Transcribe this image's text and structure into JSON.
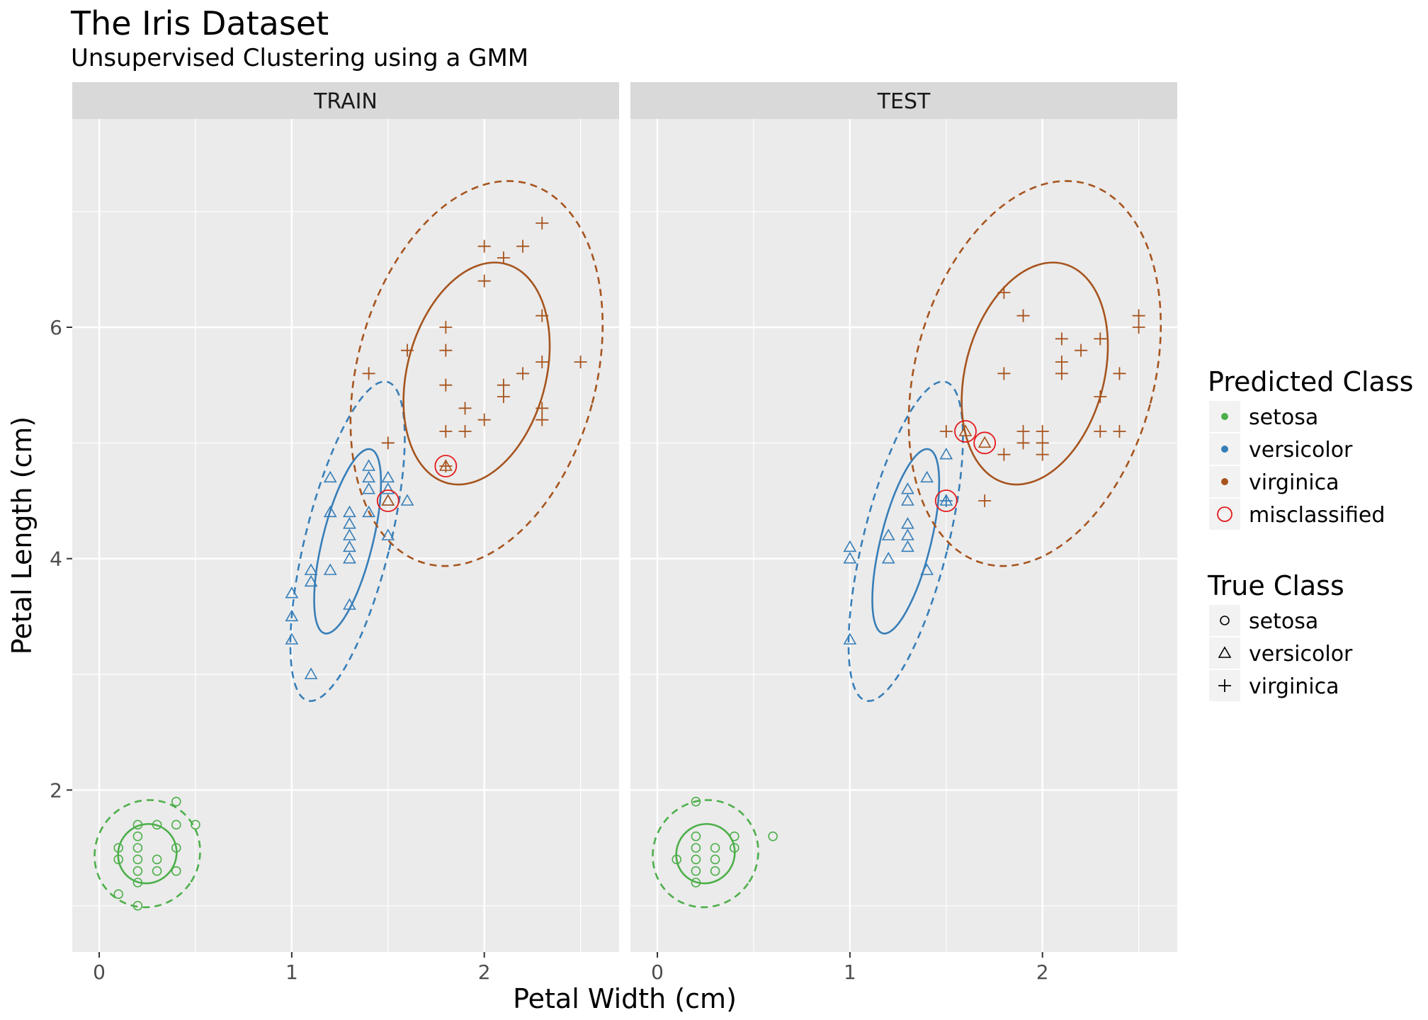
{
  "title": "The Iris Dataset",
  "subtitle": "Unsupervised Clustering using a GMM",
  "colors": {
    "setosa": "#4daf4a",
    "versicolor": "#377eb8",
    "virginica": "#a6541e",
    "misclassified": "#e41a1c",
    "panel_bg": "#ebebeb",
    "strip_bg": "#d9d9d9",
    "grid": "#ffffff"
  },
  "legend": {
    "predicted_title": "Predicted Class",
    "predicted_items": [
      {
        "label": "setosa",
        "color_key": "setosa",
        "symbol": "dot"
      },
      {
        "label": "versicolor",
        "color_key": "versicolor",
        "symbol": "dot"
      },
      {
        "label": "virginica",
        "color_key": "virginica",
        "symbol": "dot"
      },
      {
        "label": "misclassified",
        "color_key": "misclassified",
        "symbol": "ring"
      }
    ],
    "true_title": "True Class",
    "true_items": [
      {
        "label": "setosa",
        "symbol": "circle"
      },
      {
        "label": "versicolor",
        "symbol": "triangle"
      },
      {
        "label": "virginica",
        "symbol": "plus"
      }
    ]
  },
  "chart_data": {
    "type": "scatter",
    "xlabel": "Petal Width (cm)",
    "ylabel": "Petal Length (cm)",
    "xlim": [
      -0.14,
      2.7
    ],
    "ylim": [
      0.6,
      7.8
    ],
    "xticks": [
      0,
      1,
      2
    ],
    "yticks": [
      2,
      4,
      6
    ],
    "grid": true,
    "legend_position": "right",
    "panels": [
      {
        "label": "TRAIN",
        "points": [
          {
            "x": 0.2,
            "y": 1.4,
            "true": "setosa",
            "pred": "setosa"
          },
          {
            "x": 0.2,
            "y": 1.3,
            "true": "setosa",
            "pred": "setosa"
          },
          {
            "x": 0.2,
            "y": 1.5,
            "true": "setosa",
            "pred": "setosa"
          },
          {
            "x": 0.2,
            "y": 1.6,
            "true": "setosa",
            "pred": "setosa"
          },
          {
            "x": 0.2,
            "y": 1.7,
            "true": "setosa",
            "pred": "setosa"
          },
          {
            "x": 0.2,
            "y": 1.2,
            "true": "setosa",
            "pred": "setosa"
          },
          {
            "x": 0.2,
            "y": 1.0,
            "true": "setosa",
            "pred": "setosa"
          },
          {
            "x": 0.1,
            "y": 1.4,
            "true": "setosa",
            "pred": "setosa"
          },
          {
            "x": 0.1,
            "y": 1.5,
            "true": "setosa",
            "pred": "setosa"
          },
          {
            "x": 0.1,
            "y": 1.1,
            "true": "setosa",
            "pred": "setosa"
          },
          {
            "x": 0.3,
            "y": 1.4,
            "true": "setosa",
            "pred": "setosa"
          },
          {
            "x": 0.3,
            "y": 1.3,
            "true": "setosa",
            "pred": "setosa"
          },
          {
            "x": 0.3,
            "y": 1.7,
            "true": "setosa",
            "pred": "setosa"
          },
          {
            "x": 0.4,
            "y": 1.5,
            "true": "setosa",
            "pred": "setosa"
          },
          {
            "x": 0.4,
            "y": 1.3,
            "true": "setosa",
            "pred": "setosa"
          },
          {
            "x": 0.4,
            "y": 1.7,
            "true": "setosa",
            "pred": "setosa"
          },
          {
            "x": 0.4,
            "y": 1.9,
            "true": "setosa",
            "pred": "setosa"
          },
          {
            "x": 0.5,
            "y": 1.7,
            "true": "setosa",
            "pred": "setosa"
          },
          {
            "x": 1.0,
            "y": 3.7,
            "true": "versicolor",
            "pred": "versicolor"
          },
          {
            "x": 1.0,
            "y": 3.5,
            "true": "versicolor",
            "pred": "versicolor"
          },
          {
            "x": 1.0,
            "y": 3.3,
            "true": "versicolor",
            "pred": "versicolor"
          },
          {
            "x": 1.1,
            "y": 3.9,
            "true": "versicolor",
            "pred": "versicolor"
          },
          {
            "x": 1.1,
            "y": 3.8,
            "true": "versicolor",
            "pred": "versicolor"
          },
          {
            "x": 1.1,
            "y": 3.0,
            "true": "versicolor",
            "pred": "versicolor"
          },
          {
            "x": 1.2,
            "y": 3.9,
            "true": "versicolor",
            "pred": "versicolor"
          },
          {
            "x": 1.2,
            "y": 4.4,
            "true": "versicolor",
            "pred": "versicolor"
          },
          {
            "x": 1.2,
            "y": 4.7,
            "true": "versicolor",
            "pred": "versicolor"
          },
          {
            "x": 1.3,
            "y": 4.0,
            "true": "versicolor",
            "pred": "versicolor"
          },
          {
            "x": 1.3,
            "y": 4.1,
            "true": "versicolor",
            "pred": "versicolor"
          },
          {
            "x": 1.3,
            "y": 4.2,
            "true": "versicolor",
            "pred": "versicolor"
          },
          {
            "x": 1.3,
            "y": 4.3,
            "true": "versicolor",
            "pred": "versicolor"
          },
          {
            "x": 1.3,
            "y": 4.4,
            "true": "versicolor",
            "pred": "versicolor"
          },
          {
            "x": 1.3,
            "y": 3.6,
            "true": "versicolor",
            "pred": "versicolor"
          },
          {
            "x": 1.4,
            "y": 4.4,
            "true": "versicolor",
            "pred": "versicolor"
          },
          {
            "x": 1.4,
            "y": 4.6,
            "true": "versicolor",
            "pred": "versicolor"
          },
          {
            "x": 1.4,
            "y": 4.7,
            "true": "versicolor",
            "pred": "versicolor"
          },
          {
            "x": 1.4,
            "y": 4.8,
            "true": "versicolor",
            "pred": "versicolor"
          },
          {
            "x": 1.5,
            "y": 4.5,
            "true": "versicolor",
            "pred": "versicolor"
          },
          {
            "x": 1.5,
            "y": 4.6,
            "true": "versicolor",
            "pred": "versicolor"
          },
          {
            "x": 1.5,
            "y": 4.7,
            "true": "versicolor",
            "pred": "versicolor"
          },
          {
            "x": 1.5,
            "y": 4.2,
            "true": "versicolor",
            "pred": "versicolor"
          },
          {
            "x": 1.5,
            "y": 4.5,
            "true": "versicolor",
            "pred": "virginica"
          },
          {
            "x": 1.6,
            "y": 4.5,
            "true": "versicolor",
            "pred": "versicolor"
          },
          {
            "x": 1.8,
            "y": 4.8,
            "true": "versicolor",
            "pred": "virginica"
          },
          {
            "x": 1.4,
            "y": 5.6,
            "true": "virginica",
            "pred": "virginica"
          },
          {
            "x": 1.5,
            "y": 5.0,
            "true": "virginica",
            "pred": "virginica"
          },
          {
            "x": 1.6,
            "y": 5.8,
            "true": "virginica",
            "pred": "virginica"
          },
          {
            "x": 1.8,
            "y": 6.0,
            "true": "virginica",
            "pred": "virginica"
          },
          {
            "x": 1.8,
            "y": 5.8,
            "true": "virginica",
            "pred": "virginica"
          },
          {
            "x": 1.8,
            "y": 5.5,
            "true": "virginica",
            "pred": "virginica"
          },
          {
            "x": 1.8,
            "y": 5.1,
            "true": "virginica",
            "pred": "virginica"
          },
          {
            "x": 1.8,
            "y": 4.8,
            "true": "virginica",
            "pred": "virginica"
          },
          {
            "x": 1.9,
            "y": 5.3,
            "true": "virginica",
            "pred": "virginica"
          },
          {
            "x": 1.9,
            "y": 5.1,
            "true": "virginica",
            "pred": "virginica"
          },
          {
            "x": 2.0,
            "y": 6.7,
            "true": "virginica",
            "pred": "virginica"
          },
          {
            "x": 2.0,
            "y": 6.4,
            "true": "virginica",
            "pred": "virginica"
          },
          {
            "x": 2.0,
            "y": 5.2,
            "true": "virginica",
            "pred": "virginica"
          },
          {
            "x": 2.1,
            "y": 6.6,
            "true": "virginica",
            "pred": "virginica"
          },
          {
            "x": 2.1,
            "y": 5.5,
            "true": "virginica",
            "pred": "virginica"
          },
          {
            "x": 2.1,
            "y": 5.4,
            "true": "virginica",
            "pred": "virginica"
          },
          {
            "x": 2.2,
            "y": 6.7,
            "true": "virginica",
            "pred": "virginica"
          },
          {
            "x": 2.2,
            "y": 5.6,
            "true": "virginica",
            "pred": "virginica"
          },
          {
            "x": 2.3,
            "y": 6.9,
            "true": "virginica",
            "pred": "virginica"
          },
          {
            "x": 2.3,
            "y": 6.1,
            "true": "virginica",
            "pred": "virginica"
          },
          {
            "x": 2.3,
            "y": 5.7,
            "true": "virginica",
            "pred": "virginica"
          },
          {
            "x": 2.3,
            "y": 5.3,
            "true": "virginica",
            "pred": "virginica"
          },
          {
            "x": 2.3,
            "y": 5.2,
            "true": "virginica",
            "pred": "virginica"
          },
          {
            "x": 2.5,
            "y": 5.7,
            "true": "virginica",
            "pred": "virginica"
          }
        ]
      },
      {
        "label": "TEST",
        "points": [
          {
            "x": 0.1,
            "y": 1.4,
            "true": "setosa",
            "pred": "setosa"
          },
          {
            "x": 0.2,
            "y": 1.9,
            "true": "setosa",
            "pred": "setosa"
          },
          {
            "x": 0.2,
            "y": 1.6,
            "true": "setosa",
            "pred": "setosa"
          },
          {
            "x": 0.2,
            "y": 1.5,
            "true": "setosa",
            "pred": "setosa"
          },
          {
            "x": 0.2,
            "y": 1.4,
            "true": "setosa",
            "pred": "setosa"
          },
          {
            "x": 0.2,
            "y": 1.3,
            "true": "setosa",
            "pred": "setosa"
          },
          {
            "x": 0.2,
            "y": 1.2,
            "true": "setosa",
            "pred": "setosa"
          },
          {
            "x": 0.3,
            "y": 1.5,
            "true": "setosa",
            "pred": "setosa"
          },
          {
            "x": 0.3,
            "y": 1.4,
            "true": "setosa",
            "pred": "setosa"
          },
          {
            "x": 0.3,
            "y": 1.3,
            "true": "setosa",
            "pred": "setosa"
          },
          {
            "x": 0.4,
            "y": 1.6,
            "true": "setosa",
            "pred": "setosa"
          },
          {
            "x": 0.4,
            "y": 1.5,
            "true": "setosa",
            "pred": "setosa"
          },
          {
            "x": 0.6,
            "y": 1.6,
            "true": "setosa",
            "pred": "setosa"
          },
          {
            "x": 1.0,
            "y": 4.1,
            "true": "versicolor",
            "pred": "versicolor"
          },
          {
            "x": 1.0,
            "y": 4.0,
            "true": "versicolor",
            "pred": "versicolor"
          },
          {
            "x": 1.0,
            "y": 3.3,
            "true": "versicolor",
            "pred": "versicolor"
          },
          {
            "x": 1.2,
            "y": 4.2,
            "true": "versicolor",
            "pred": "versicolor"
          },
          {
            "x": 1.2,
            "y": 4.0,
            "true": "versicolor",
            "pred": "versicolor"
          },
          {
            "x": 1.3,
            "y": 4.6,
            "true": "versicolor",
            "pred": "versicolor"
          },
          {
            "x": 1.3,
            "y": 4.5,
            "true": "versicolor",
            "pred": "versicolor"
          },
          {
            "x": 1.3,
            "y": 4.3,
            "true": "versicolor",
            "pred": "versicolor"
          },
          {
            "x": 1.3,
            "y": 4.2,
            "true": "versicolor",
            "pred": "versicolor"
          },
          {
            "x": 1.3,
            "y": 4.1,
            "true": "versicolor",
            "pred": "versicolor"
          },
          {
            "x": 1.4,
            "y": 4.7,
            "true": "versicolor",
            "pred": "versicolor"
          },
          {
            "x": 1.4,
            "y": 3.9,
            "true": "versicolor",
            "pred": "versicolor"
          },
          {
            "x": 1.5,
            "y": 4.9,
            "true": "versicolor",
            "pred": "versicolor"
          },
          {
            "x": 1.5,
            "y": 4.5,
            "true": "versicolor",
            "pred": "versicolor"
          },
          {
            "x": 1.6,
            "y": 5.1,
            "true": "versicolor",
            "pred": "virginica"
          },
          {
            "x": 1.7,
            "y": 5.0,
            "true": "versicolor",
            "pred": "virginica"
          },
          {
            "x": 1.5,
            "y": 4.5,
            "true": "virginica",
            "pred": "versicolor"
          },
          {
            "x": 1.5,
            "y": 5.1,
            "true": "virginica",
            "pred": "virginica"
          },
          {
            "x": 1.7,
            "y": 4.5,
            "true": "virginica",
            "pred": "virginica"
          },
          {
            "x": 1.8,
            "y": 6.3,
            "true": "virginica",
            "pred": "virginica"
          },
          {
            "x": 1.8,
            "y": 5.6,
            "true": "virginica",
            "pred": "virginica"
          },
          {
            "x": 1.8,
            "y": 4.9,
            "true": "virginica",
            "pred": "virginica"
          },
          {
            "x": 1.9,
            "y": 6.1,
            "true": "virginica",
            "pred": "virginica"
          },
          {
            "x": 1.9,
            "y": 5.1,
            "true": "virginica",
            "pred": "virginica"
          },
          {
            "x": 1.9,
            "y": 5.0,
            "true": "virginica",
            "pred": "virginica"
          },
          {
            "x": 2.0,
            "y": 5.1,
            "true": "virginica",
            "pred": "virginica"
          },
          {
            "x": 2.0,
            "y": 5.0,
            "true": "virginica",
            "pred": "virginica"
          },
          {
            "x": 2.0,
            "y": 4.9,
            "true": "virginica",
            "pred": "virginica"
          },
          {
            "x": 2.1,
            "y": 5.9,
            "true": "virginica",
            "pred": "virginica"
          },
          {
            "x": 2.1,
            "y": 5.7,
            "true": "virginica",
            "pred": "virginica"
          },
          {
            "x": 2.1,
            "y": 5.6,
            "true": "virginica",
            "pred": "virginica"
          },
          {
            "x": 2.2,
            "y": 5.8,
            "true": "virginica",
            "pred": "virginica"
          },
          {
            "x": 2.3,
            "y": 5.9,
            "true": "virginica",
            "pred": "virginica"
          },
          {
            "x": 2.3,
            "y": 5.4,
            "true": "virginica",
            "pred": "virginica"
          },
          {
            "x": 2.3,
            "y": 5.1,
            "true": "virginica",
            "pred": "virginica"
          },
          {
            "x": 2.4,
            "y": 5.6,
            "true": "virginica",
            "pred": "virginica"
          },
          {
            "x": 2.4,
            "y": 5.1,
            "true": "virginica",
            "pred": "virginica"
          },
          {
            "x": 2.5,
            "y": 6.1,
            "true": "virginica",
            "pred": "virginica"
          },
          {
            "x": 2.5,
            "y": 6.0,
            "true": "virginica",
            "pred": "virginica"
          }
        ]
      }
    ],
    "ellipses": [
      {
        "cluster": "setosa",
        "cx": 0.25,
        "cy": 1.45,
        "a": 0.15,
        "b": 0.26,
        "angle_deg": 35,
        "level": "inner"
      },
      {
        "cluster": "setosa",
        "cx": 0.25,
        "cy": 1.45,
        "a": 0.27,
        "b": 0.47,
        "angle_deg": 35,
        "level": "outer"
      },
      {
        "cluster": "versicolor",
        "cx": 1.29,
        "cy": 4.15,
        "a": 0.13,
        "b": 0.82,
        "angle_deg": 14,
        "level": "inner"
      },
      {
        "cluster": "versicolor",
        "cx": 1.29,
        "cy": 4.15,
        "a": 0.22,
        "b": 1.42,
        "angle_deg": 14,
        "level": "outer"
      },
      {
        "cluster": "virginica",
        "cx": 1.96,
        "cy": 5.6,
        "a": 0.36,
        "b": 0.98,
        "angle_deg": 15,
        "level": "inner"
      },
      {
        "cluster": "virginica",
        "cx": 1.96,
        "cy": 5.6,
        "a": 0.62,
        "b": 1.7,
        "angle_deg": 15,
        "level": "outer"
      }
    ]
  }
}
